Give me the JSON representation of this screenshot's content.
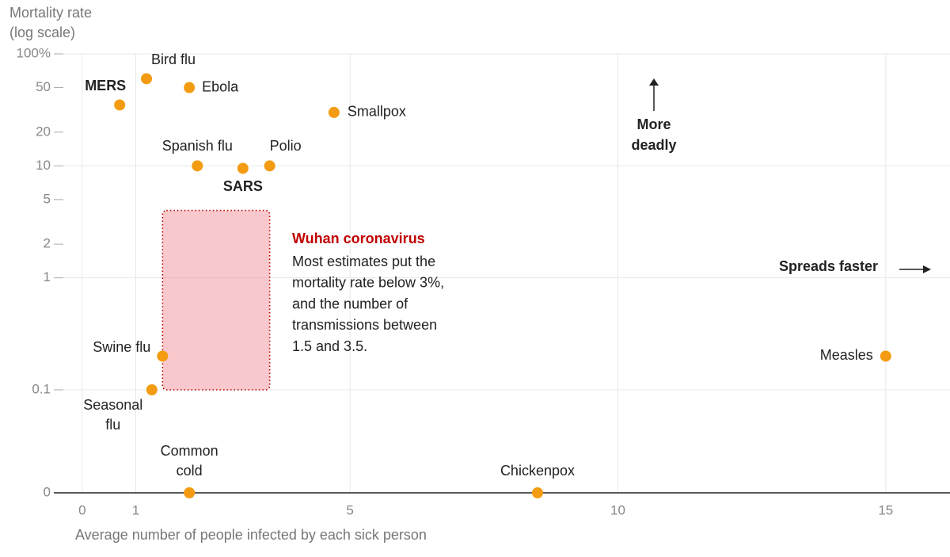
{
  "chart_data": {
    "type": "scatter",
    "y_label": [
      "Mortality rate",
      "(log scale)"
    ],
    "x_label": "Average number of people infected by each sick person",
    "log_y": true,
    "grid": true,
    "xlim": [
      -0.5,
      16.2
    ],
    "xticks": [
      0,
      1,
      5,
      10,
      15
    ],
    "ylim": [
      0,
      100
    ],
    "yticks": [
      {
        "value": 100,
        "label": "100%"
      },
      50,
      20,
      10,
      5,
      2,
      1,
      0.1,
      0
    ],
    "color": "#f39c12",
    "x": [
      0.7,
      1.2,
      2.0,
      4.7,
      2.15,
      3.0,
      3.5,
      1.5,
      1.3,
      2.0,
      8.5,
      15
    ],
    "values": [
      35,
      60,
      50,
      30,
      10,
      9.5,
      10,
      0.2,
      0.1,
      0,
      0,
      0.2
    ],
    "labels": [
      [
        "MERS"
      ],
      [
        "Bird flu"
      ],
      [
        "Ebola"
      ],
      [
        "Smallpox"
      ],
      [
        "Spanish flu"
      ],
      [
        "SARS"
      ],
      [
        "Polio"
      ],
      [
        "Swine flu"
      ],
      [
        "Seasonal",
        "flu"
      ],
      [
        "Common",
        "cold"
      ],
      [
        "Chickenpox"
      ],
      [
        "Measles"
      ]
    ],
    "bold": [
      true,
      false,
      false,
      false,
      false,
      true,
      false,
      false,
      false,
      false,
      false,
      false
    ],
    "highlight": {
      "title": "Wuhan coronavirus",
      "text": [
        "Most estimates put the",
        "mortality rate below 3%,",
        "and the number of",
        "transmissions between",
        "1.5 and 3.5."
      ],
      "x_range": [
        1.5,
        3.5
      ],
      "y_range": [
        0.1,
        4
      ],
      "color": "#c00000"
    },
    "more_deadly": [
      "More",
      "deadly"
    ],
    "spreads_faster": "Spreads faster"
  }
}
